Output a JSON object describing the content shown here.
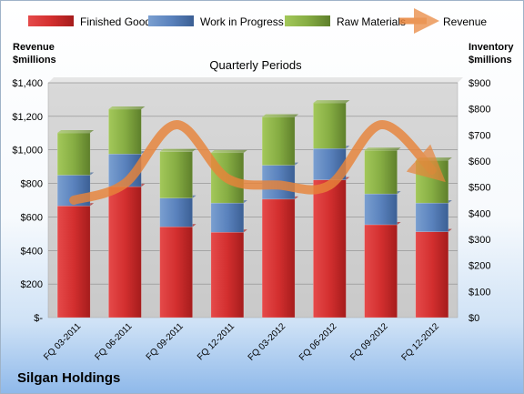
{
  "company": "Silgan Holdings",
  "chart_data": {
    "type": "bar",
    "subtype": "stacked-bar-with-line",
    "title": "Quarterly Periods",
    "left_axis_title": [
      "Revenue",
      "$millions"
    ],
    "right_axis_title": [
      "Inventory",
      "$millions"
    ],
    "categories": [
      "FQ 03-2011",
      "FQ 06-2011",
      "FQ 09-2011",
      "FQ 12-2011",
      "FQ 03-2012",
      "FQ 06-2012",
      "FQ 09-2012",
      "FQ 12-2012"
    ],
    "left_ticks": [
      "$-",
      "$200",
      "$400",
      "$600",
      "$800",
      "$1,000",
      "$1,200",
      "$1,400"
    ],
    "right_ticks": [
      "$0",
      "$100",
      "$200",
      "$300",
      "$400",
      "$500",
      "$600",
      "$700",
      "$800",
      "$900"
    ],
    "left_ylim": [
      0,
      1400
    ],
    "right_ylim": [
      0,
      900
    ],
    "grid": true,
    "legend_position": "top",
    "series": [
      {
        "name": "Finished Goods",
        "axis": "right",
        "kind": "bar",
        "color": "#cc2a2a",
        "values": [
          428,
          502,
          348,
          327,
          454,
          528,
          356,
          329
        ]
      },
      {
        "name": "Work in Progress",
        "axis": "right",
        "kind": "bar",
        "color": "#4f81bd",
        "values": [
          118,
          125,
          110,
          112,
          130,
          120,
          118,
          110
        ]
      },
      {
        "name": "Raw Materials",
        "axis": "right",
        "kind": "bar",
        "color": "#7ea23c",
        "values": [
          162,
          172,
          178,
          193,
          185,
          175,
          167,
          164
        ]
      },
      {
        "name": "Revenue",
        "axis": "left",
        "kind": "line",
        "color": "#e8843a",
        "values": [
          700,
          800,
          1150,
          830,
          790,
          790,
          1150,
          880
        ]
      }
    ]
  }
}
